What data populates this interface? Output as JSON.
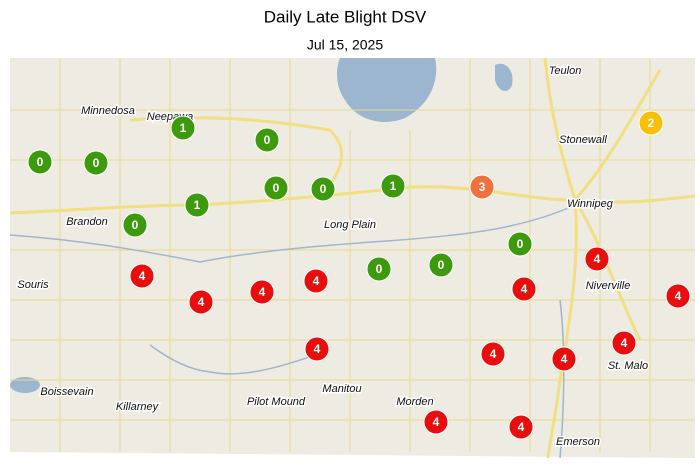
{
  "header": {
    "title": "Daily Late Blight DSV",
    "date": "Jul 15, 2025"
  },
  "places": [
    {
      "name": "Teulon"
    },
    {
      "name": "Minnedosa"
    },
    {
      "name": "Neepawa"
    },
    {
      "name": "Stonewall"
    },
    {
      "name": "Winnipeg"
    },
    {
      "name": "Brandon"
    },
    {
      "name": "Long Plain"
    },
    {
      "name": "Souris"
    },
    {
      "name": "Niverville"
    },
    {
      "name": "St. Malo"
    },
    {
      "name": "Boissevain"
    },
    {
      "name": "Killarney"
    },
    {
      "name": "Pilot Mound"
    },
    {
      "name": "Manitou"
    },
    {
      "name": "Morden"
    },
    {
      "name": "Emerson"
    }
  ],
  "markers": [
    {
      "value": 1,
      "color": "#3c9a0c"
    },
    {
      "value": 0,
      "color": "#3c9a0c"
    },
    {
      "value": 0,
      "color": "#3c9a0c"
    },
    {
      "value": 0,
      "color": "#3c9a0c"
    },
    {
      "value": 1,
      "color": "#3c9a0c"
    },
    {
      "value": 0,
      "color": "#3c9a0c"
    },
    {
      "value": 0,
      "color": "#3c9a0c"
    },
    {
      "value": 1,
      "color": "#3c9a0c"
    },
    {
      "value": 3,
      "color": "#f07040"
    },
    {
      "value": 2,
      "color": "#f8c000"
    },
    {
      "value": 0,
      "color": "#3c9a0c"
    },
    {
      "value": 0,
      "color": "#3c9a0c"
    },
    {
      "value": 0,
      "color": "#3c9a0c"
    },
    {
      "value": 0,
      "color": "#3c9a0c"
    },
    {
      "value": 4,
      "color": "#e80e0e"
    },
    {
      "value": 4,
      "color": "#e80e0e"
    },
    {
      "value": 4,
      "color": "#e80e0e"
    },
    {
      "value": 4,
      "color": "#e80e0e"
    },
    {
      "value": 4,
      "color": "#e80e0e"
    },
    {
      "value": 4,
      "color": "#e80e0e"
    },
    {
      "value": 4,
      "color": "#e80e0e"
    },
    {
      "value": 4,
      "color": "#e80e0e"
    },
    {
      "value": 4,
      "color": "#e80e0e"
    },
    {
      "value": 4,
      "color": "#e80e0e"
    },
    {
      "value": 4,
      "color": "#e80e0e"
    },
    {
      "value": 4,
      "color": "#e80e0e"
    },
    {
      "value": 4,
      "color": "#e80e0e"
    }
  ]
}
